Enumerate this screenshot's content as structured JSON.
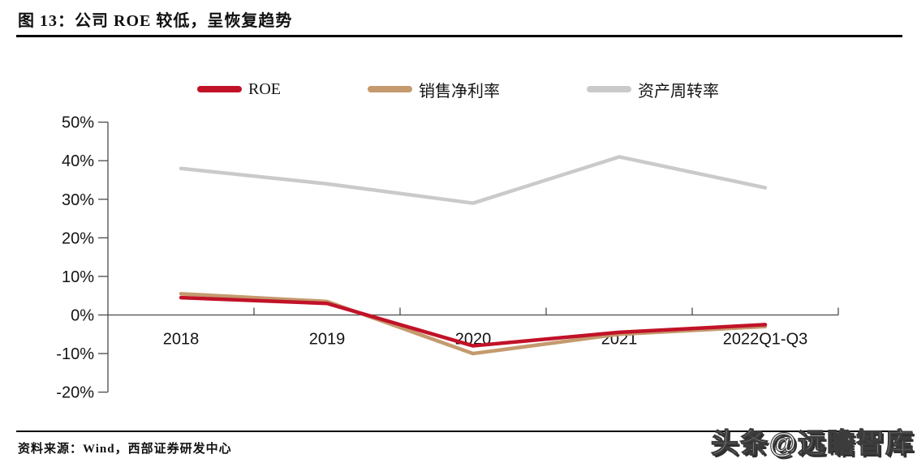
{
  "figure": {
    "title": "图 13：公司 ROE 较低，呈恢复趋势",
    "source_label": "资料来源：Wind，西部证券研发中心",
    "watermark": "头条@远瞻智库"
  },
  "colors": {
    "roe_red": "#C11228",
    "margin_tan": "#C49A6E",
    "turnover_gray": "#CACACA",
    "axis": "#4a4a4a",
    "rule_black": "#000000"
  },
  "chart_data": {
    "type": "line",
    "title": "公司 ROE 较低，呈恢复趋势",
    "categories": [
      "2018",
      "2019",
      "2020",
      "2021",
      "2022Q1-Q3"
    ],
    "series": [
      {
        "name": "ROE",
        "color": "#C11228",
        "values": [
          4.5,
          3,
          -8,
          -4.5,
          -2.5
        ]
      },
      {
        "name": "销售净利率",
        "color": "#C49A6E",
        "values": [
          5.5,
          3.5,
          -10,
          -5,
          -3
        ]
      },
      {
        "name": "资产周转率",
        "color": "#CACACA",
        "values": [
          38,
          34,
          29,
          41,
          33
        ]
      }
    ],
    "y_ticks": [
      50,
      40,
      30,
      20,
      10,
      0,
      -10,
      -20
    ],
    "y_tick_labels": [
      "50%",
      "40%",
      "30%",
      "20%",
      "10%",
      "0%",
      "-10%",
      "-20%"
    ],
    "ylim": [
      -20,
      50
    ],
    "xlabel": "",
    "ylabel": "",
    "grid": false,
    "legend_position": "top"
  }
}
